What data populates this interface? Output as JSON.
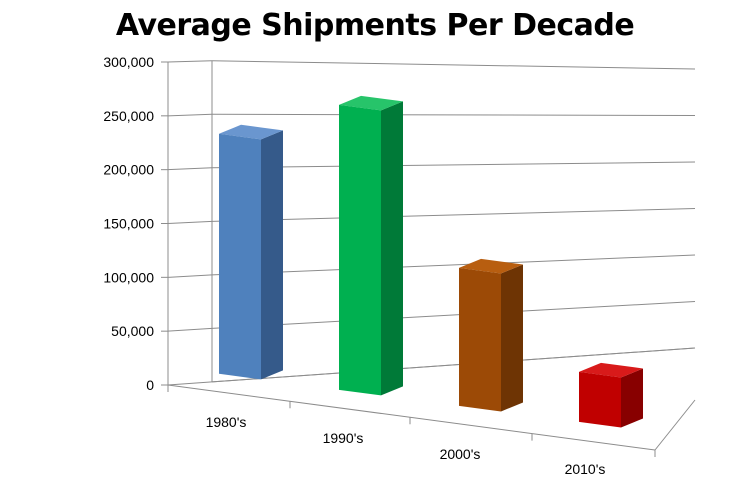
{
  "chart_data": {
    "type": "bar",
    "title": "Average Shipments Per Decade",
    "xlabel": "",
    "ylabel": "",
    "categories": [
      "1980's",
      "1990's",
      "2000's",
      "2010's"
    ],
    "series": [
      {
        "values": [
          240000,
          285000,
          138000,
          50000
        ]
      }
    ],
    "colors": [
      "#4f81bd",
      "#00b050",
      "#9c4a06",
      "#c00000"
    ],
    "side_colors": [
      "#355a8a",
      "#007a38",
      "#6e3404",
      "#880000"
    ],
    "top_colors": [
      "#6a96cf",
      "#27c46a",
      "#b85e10",
      "#d81a1a"
    ],
    "ylim": [
      0,
      300000
    ],
    "yticks": [
      "0",
      "50,000",
      "100,000",
      "150,000",
      "200,000",
      "250,000",
      "300,000"
    ],
    "grid": true,
    "legend": "none",
    "style": "3d-perspective"
  }
}
